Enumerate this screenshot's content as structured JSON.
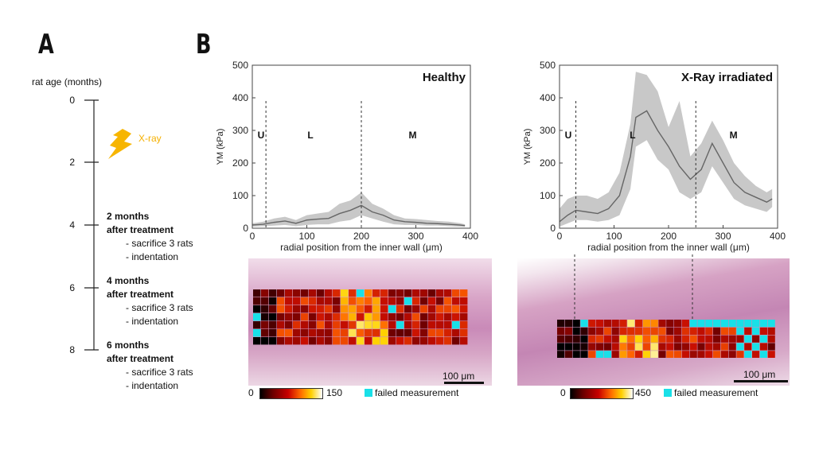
{
  "panels": {
    "a_letter": "A",
    "b_letter": "B"
  },
  "timeline": {
    "title": "rat age (months)",
    "ticks": [
      "0",
      "2",
      "4",
      "6",
      "8"
    ],
    "xray_label": "X-ray",
    "events": [
      {
        "head1": "2 months",
        "head2": "after treatment",
        "item1": "- sacrifice 3 rats",
        "item2": "- indentation"
      },
      {
        "head1": "4 months",
        "head2": "after treatment",
        "item1": "- sacrifice 3 rats",
        "item2": "- indentation"
      },
      {
        "head1": "6 months",
        "head2": "after treatment",
        "item1": "- sacrifice 3 rats",
        "item2": "- indentation"
      }
    ],
    "colors": {
      "xray": "#f5b000"
    }
  },
  "chart_data": [
    {
      "type": "area",
      "title": "Healthy",
      "xlabel": "radial position from the inner wall (μm)",
      "ylabel": "YM (kPa)",
      "xlim": [
        0,
        400
      ],
      "ylim": [
        0,
        500
      ],
      "xticks": [
        "0",
        "100",
        "200",
        "300",
        "400"
      ],
      "yticks": [
        "0",
        "100",
        "200",
        "300",
        "400",
        "500"
      ],
      "region_labels": [
        "U",
        "L",
        "M"
      ],
      "region_boundaries": [
        25,
        200
      ],
      "x": [
        0,
        20,
        40,
        60,
        80,
        100,
        120,
        140,
        160,
        180,
        200,
        220,
        240,
        260,
        280,
        300,
        320,
        340,
        360,
        380,
        390
      ],
      "mean": [
        10,
        12,
        18,
        22,
        15,
        25,
        28,
        30,
        45,
        55,
        70,
        50,
        40,
        25,
        20,
        18,
        15,
        14,
        12,
        10,
        8
      ],
      "lower": [
        5,
        6,
        8,
        10,
        6,
        10,
        12,
        12,
        20,
        25,
        40,
        30,
        20,
        12,
        10,
        10,
        8,
        8,
        6,
        5,
        4
      ],
      "upper": [
        15,
        20,
        30,
        35,
        25,
        40,
        45,
        50,
        75,
        85,
        110,
        75,
        60,
        40,
        30,
        28,
        25,
        22,
        20,
        16,
        12
      ],
      "colors": {
        "line": "#666666",
        "band": "#c8c8c8"
      },
      "colorbar": {
        "min": "0",
        "max": "150",
        "failed_label": "failed measurement",
        "failed_color": "#19e0e8"
      },
      "scalebar": "100 μm"
    },
    {
      "type": "area",
      "title": "X-Ray irradiated",
      "xlabel": "radial position from the inner wall (μm)",
      "ylabel": "YM (kPa)",
      "xlim": [
        0,
        400
      ],
      "ylim": [
        0,
        500
      ],
      "xticks": [
        "0",
        "100",
        "200",
        "300",
        "400"
      ],
      "yticks": [
        "0",
        "100",
        "200",
        "300",
        "400",
        "500"
      ],
      "region_labels": [
        "U",
        "L",
        "M"
      ],
      "region_boundaries": [
        30,
        250
      ],
      "x": [
        0,
        15,
        30,
        50,
        70,
        90,
        110,
        130,
        140,
        160,
        180,
        200,
        220,
        240,
        260,
        280,
        300,
        320,
        340,
        360,
        380,
        390
      ],
      "mean": [
        20,
        40,
        55,
        50,
        45,
        60,
        100,
        220,
        340,
        360,
        300,
        250,
        190,
        150,
        180,
        260,
        200,
        140,
        110,
        95,
        80,
        90
      ],
      "lower": [
        5,
        15,
        25,
        25,
        20,
        25,
        40,
        120,
        250,
        270,
        210,
        180,
        110,
        90,
        110,
        190,
        140,
        90,
        70,
        60,
        50,
        65
      ],
      "upper": [
        60,
        90,
        100,
        100,
        90,
        110,
        170,
        320,
        480,
        470,
        420,
        310,
        390,
        220,
        260,
        330,
        270,
        200,
        160,
        130,
        110,
        120
      ],
      "colors": {
        "line": "#666666",
        "band": "#c8c8c8"
      },
      "colorbar": {
        "min": "0",
        "max": "450",
        "failed_label": "failed measurement",
        "failed_color": "#19e0e8"
      },
      "scalebar": "100 μm"
    }
  ]
}
